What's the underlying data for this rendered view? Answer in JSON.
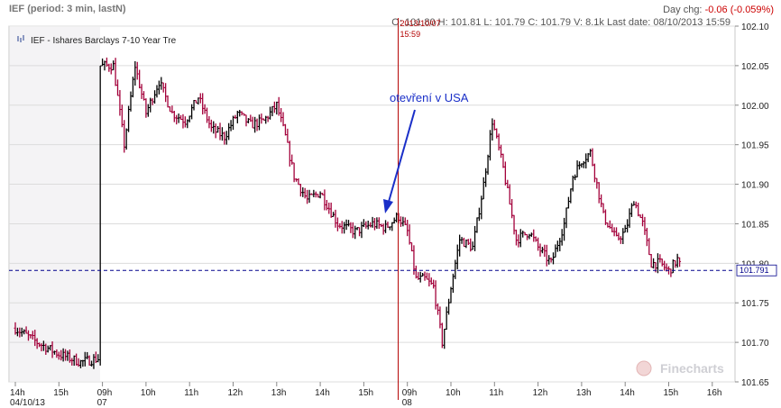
{
  "header": {
    "symbol": "IEF",
    "period_info": "(period: 3 min, lastN)",
    "day_change_label": "Day chg:",
    "day_change_value": "-0.06 (-0.059%)",
    "ohlc_text": "O: 101.80  H: 101.81  L: 101.79  C: 101.79  V: 8.1k  Last date: 08/10/2013 15:59"
  },
  "legend": {
    "label": "IEF - Ishares Barclays 7-10 Year Tre"
  },
  "cursor": {
    "date": "2013/10/07",
    "time": "15:59"
  },
  "annotation": {
    "text": "otevření v USA"
  },
  "watermark": "Finecharts",
  "last_price_label": "101.791",
  "colors": {
    "up": "#000000",
    "down": "#a3003a",
    "cursor": "#b30000",
    "last_price_line": "#00008b",
    "arrow": "#1a2fc8",
    "grid": "#dcdcdc",
    "closed_session": "#f4f3f5"
  },
  "chart_data": {
    "type": "ohlc",
    "ylim": [
      101.65,
      102.1
    ],
    "y_ticks": [
      "102.10",
      "102.05",
      "102.00",
      "101.95",
      "101.90",
      "101.85",
      "101.80",
      "101.75",
      "101.70",
      "101.65"
    ],
    "y_tick_values": [
      102.1,
      102.05,
      102.0,
      101.95,
      101.9,
      101.85,
      101.8,
      101.75,
      101.7,
      101.65
    ],
    "x_ticks": [
      {
        "label": "14h",
        "sub": "04/10/13",
        "t": 0
      },
      {
        "label": "15h",
        "sub": "",
        "t": 1
      },
      {
        "label": "09h",
        "sub": "07",
        "t": 2
      },
      {
        "label": "10h",
        "sub": "",
        "t": 3
      },
      {
        "label": "11h",
        "sub": "",
        "t": 4
      },
      {
        "label": "12h",
        "sub": "",
        "t": 5
      },
      {
        "label": "13h",
        "sub": "",
        "t": 6
      },
      {
        "label": "14h",
        "sub": "",
        "t": 7
      },
      {
        "label": "15h",
        "sub": "",
        "t": 8
      },
      {
        "label": "09h",
        "sub": "08",
        "t": 9
      },
      {
        "label": "10h",
        "sub": "",
        "t": 10
      },
      {
        "label": "11h",
        "sub": "",
        "t": 11
      },
      {
        "label": "12h",
        "sub": "",
        "t": 12
      },
      {
        "label": "13h",
        "sub": "",
        "t": 13
      },
      {
        "label": "14h",
        "sub": "",
        "t": 14
      },
      {
        "label": "15h",
        "sub": "",
        "t": 15
      },
      {
        "label": "16h",
        "sub": "",
        "t": 16
      }
    ],
    "price_path": [
      [
        0.0,
        101.718
      ],
      [
        0.5,
        101.7
      ],
      [
        1.0,
        101.685
      ],
      [
        1.5,
        101.675
      ],
      [
        1.95,
        101.68
      ],
      [
        2.0,
        102.05
      ],
      [
        2.25,
        102.05
      ],
      [
        2.5,
        101.95
      ],
      [
        2.75,
        102.05
      ],
      [
        3.0,
        101.99
      ],
      [
        3.3,
        102.03
      ],
      [
        3.6,
        101.99
      ],
      [
        3.9,
        101.98
      ],
      [
        4.2,
        102.01
      ],
      [
        4.5,
        101.97
      ],
      [
        4.8,
        101.96
      ],
      [
        5.1,
        101.99
      ],
      [
        5.4,
        101.975
      ],
      [
        5.7,
        101.98
      ],
      [
        6.0,
        102.0
      ],
      [
        6.2,
        101.96
      ],
      [
        6.4,
        101.91
      ],
      [
        6.7,
        101.88
      ],
      [
        7.0,
        101.89
      ],
      [
        7.4,
        101.85
      ],
      [
        7.8,
        101.84
      ],
      [
        8.2,
        101.85
      ],
      [
        8.5,
        101.845
      ],
      [
        8.79,
        101.86
      ],
      [
        9.0,
        101.84
      ],
      [
        9.2,
        101.78
      ],
      [
        9.4,
        101.78
      ],
      [
        9.6,
        101.77
      ],
      [
        9.8,
        101.7
      ],
      [
        10.0,
        101.77
      ],
      [
        10.2,
        101.83
      ],
      [
        10.5,
        101.82
      ],
      [
        10.75,
        101.9
      ],
      [
        10.95,
        101.98
      ],
      [
        11.2,
        101.92
      ],
      [
        11.5,
        101.83
      ],
      [
        11.8,
        101.84
      ],
      [
        12.0,
        101.82
      ],
      [
        12.3,
        101.8
      ],
      [
        12.6,
        101.85
      ],
      [
        12.8,
        101.91
      ],
      [
        13.0,
        101.93
      ],
      [
        13.2,
        101.94
      ],
      [
        13.5,
        101.86
      ],
      [
        13.8,
        101.83
      ],
      [
        14.0,
        101.84
      ],
      [
        14.2,
        101.88
      ],
      [
        14.4,
        101.85
      ],
      [
        14.6,
        101.8
      ],
      [
        14.8,
        101.8
      ],
      [
        15.0,
        101.79
      ],
      [
        15.2,
        101.805
      ],
      [
        15.3,
        101.791
      ]
    ]
  }
}
